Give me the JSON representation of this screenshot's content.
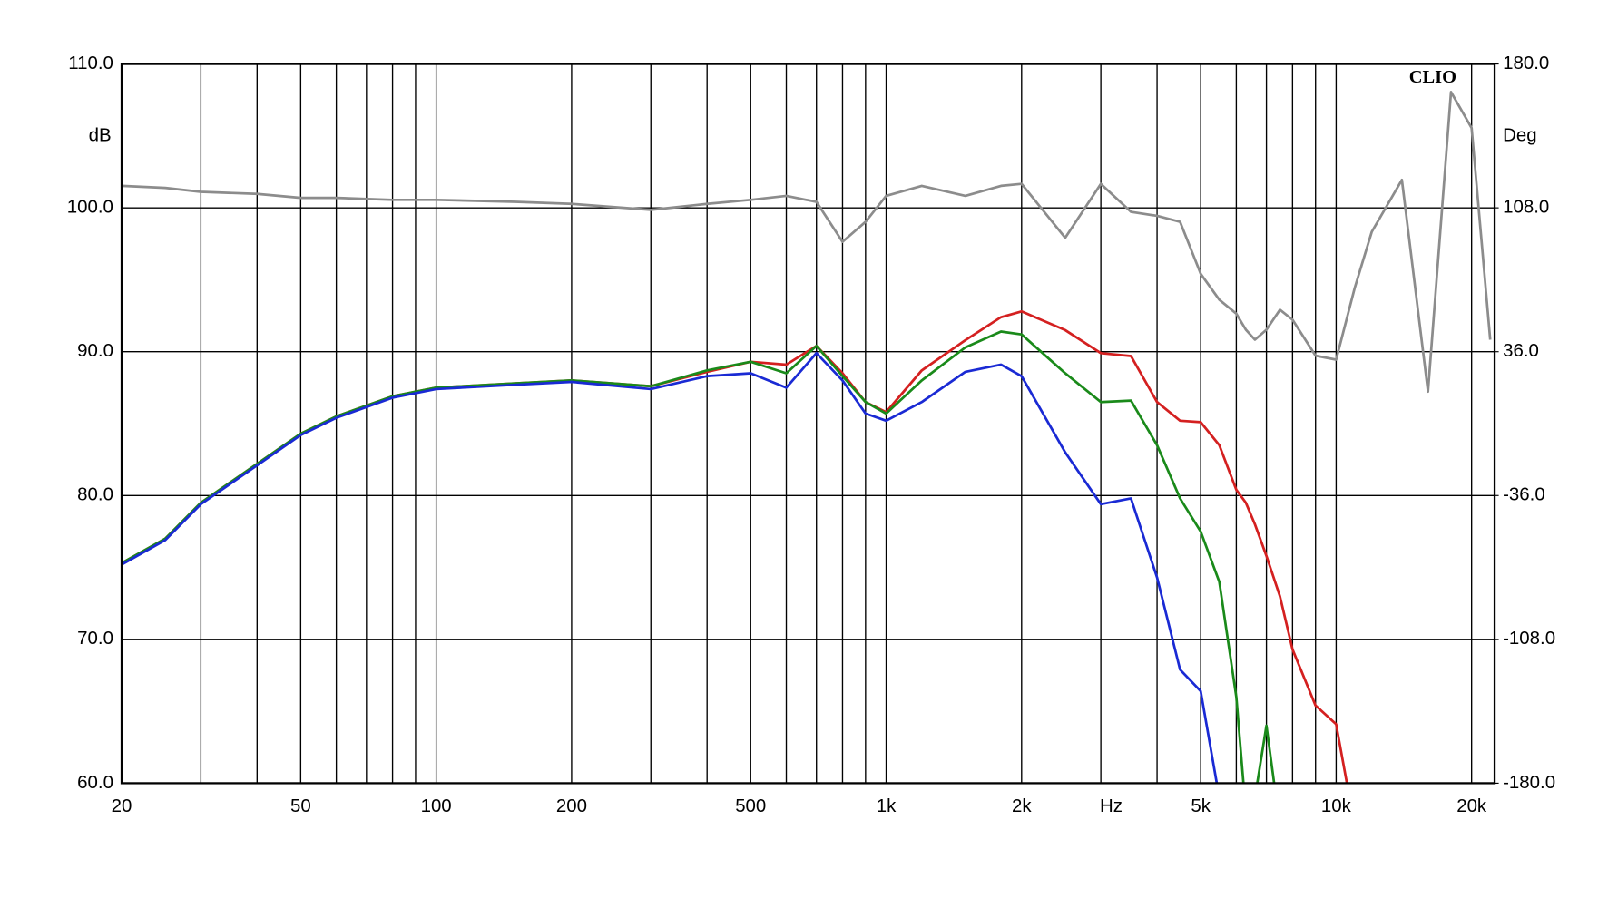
{
  "chart_data": {
    "type": "line",
    "watermark": "CLIO",
    "y_label": "dB",
    "y2_label": "Deg",
    "x_label": "Hz",
    "log_x": true,
    "grid": true,
    "xlim": [
      20,
      22500
    ],
    "xticks": [
      20,
      50,
      100,
      200,
      500,
      {
        "value": 1000,
        "label": "1k"
      },
      {
        "value": 2000,
        "label": "2k"
      },
      {
        "value": 5000,
        "label": "5k"
      },
      {
        "value": 10000,
        "label": "10k"
      },
      {
        "value": 20000,
        "label": "20k"
      }
    ],
    "x_minor_grid": [
      30,
      40,
      60,
      70,
      80,
      90,
      300,
      400,
      600,
      700,
      800,
      900,
      3000,
      4000,
      6000,
      7000,
      8000,
      9000
    ],
    "ylim": [
      60,
      110
    ],
    "yticks": [
      {
        "value": 60,
        "label": "60.0"
      },
      {
        "value": 70,
        "label": "70.0"
      },
      {
        "value": 80,
        "label": "80.0"
      },
      {
        "value": 90,
        "label": "90.0"
      },
      {
        "value": 100,
        "label": "100.0"
      },
      {
        "value": 110,
        "label": "110.0"
      }
    ],
    "y2lim": [
      -180,
      180
    ],
    "y2ticks": [
      {
        "value": -180,
        "label": "-180.0"
      },
      {
        "value": -108,
        "label": "-108.0"
      },
      {
        "value": -36,
        "label": "-36.0"
      },
      {
        "value": 36,
        "label": "36.0"
      },
      {
        "value": 108,
        "label": "108.0"
      },
      {
        "value": 180,
        "label": "180.0"
      }
    ],
    "x": [
      20,
      25,
      30,
      40,
      50,
      60,
      80,
      100,
      150,
      200,
      300,
      400,
      500,
      600,
      700,
      800,
      900,
      1000,
      1200,
      1500,
      1800,
      2000,
      2500,
      3000,
      3500,
      4000,
      4500,
      5000,
      5500,
      6000,
      6300,
      6600,
      7000,
      7500,
      8000,
      9000,
      10000,
      11000,
      12000,
      14000,
      16000,
      18000,
      20000,
      22000
    ],
    "series": [
      {
        "color": "#d42020",
        "values": [
          75.3,
          77,
          79.5,
          82.2,
          84.3,
          85.5,
          86.9,
          87.5,
          87.8,
          88.0,
          87.6,
          88.6,
          89.3,
          89.1,
          90.4,
          88.5,
          86.5,
          85.8,
          88.7,
          90.8,
          92.4,
          92.8,
          91.5,
          89.9,
          89.7,
          86.5,
          85.2,
          85.1,
          83.5,
          80.4,
          79.5,
          78,
          75.8,
          73,
          69.3,
          65.4,
          64.1,
          57,
          null,
          null,
          null,
          null,
          null,
          null
        ]
      },
      {
        "color": "#1a8a1a",
        "values": [
          75.3,
          77,
          79.5,
          82.2,
          84.3,
          85.5,
          86.9,
          87.5,
          87.8,
          88.0,
          87.6,
          88.7,
          89.3,
          88.5,
          90.4,
          88.3,
          86.5,
          85.7,
          88,
          90.3,
          91.4,
          91.2,
          88.5,
          86.5,
          86.6,
          83.5,
          79.8,
          77.5,
          74,
          66,
          58,
          59,
          64,
          57,
          null,
          null,
          null,
          null,
          null,
          null,
          null,
          null,
          null,
          null
        ]
      },
      {
        "color": "#1a2ad4",
        "values": [
          75.2,
          76.9,
          79.4,
          82.1,
          84.2,
          85.4,
          86.8,
          87.4,
          87.7,
          87.9,
          87.4,
          88.3,
          88.5,
          87.5,
          89.9,
          88,
          85.7,
          85.2,
          86.5,
          88.6,
          89.1,
          88.3,
          83,
          79.4,
          79.8,
          74.3,
          67.9,
          66.4,
          59,
          null,
          null,
          null,
          null,
          null,
          null,
          null,
          null,
          null,
          null,
          null,
          null,
          null,
          null,
          null
        ]
      },
      {
        "color": "#8c8c8c",
        "axis": "y2",
        "values": [
          119,
          118,
          116,
          115,
          113,
          113,
          112,
          112,
          111,
          110,
          107,
          110,
          112,
          114,
          111,
          91,
          101,
          114,
          119,
          114,
          119,
          120,
          93,
          120,
          106,
          104,
          101,
          75,
          62,
          55,
          47,
          42,
          47,
          57,
          52,
          34,
          32,
          68,
          96,
          122,
          16,
          166,
          148,
          42
        ]
      }
    ]
  }
}
